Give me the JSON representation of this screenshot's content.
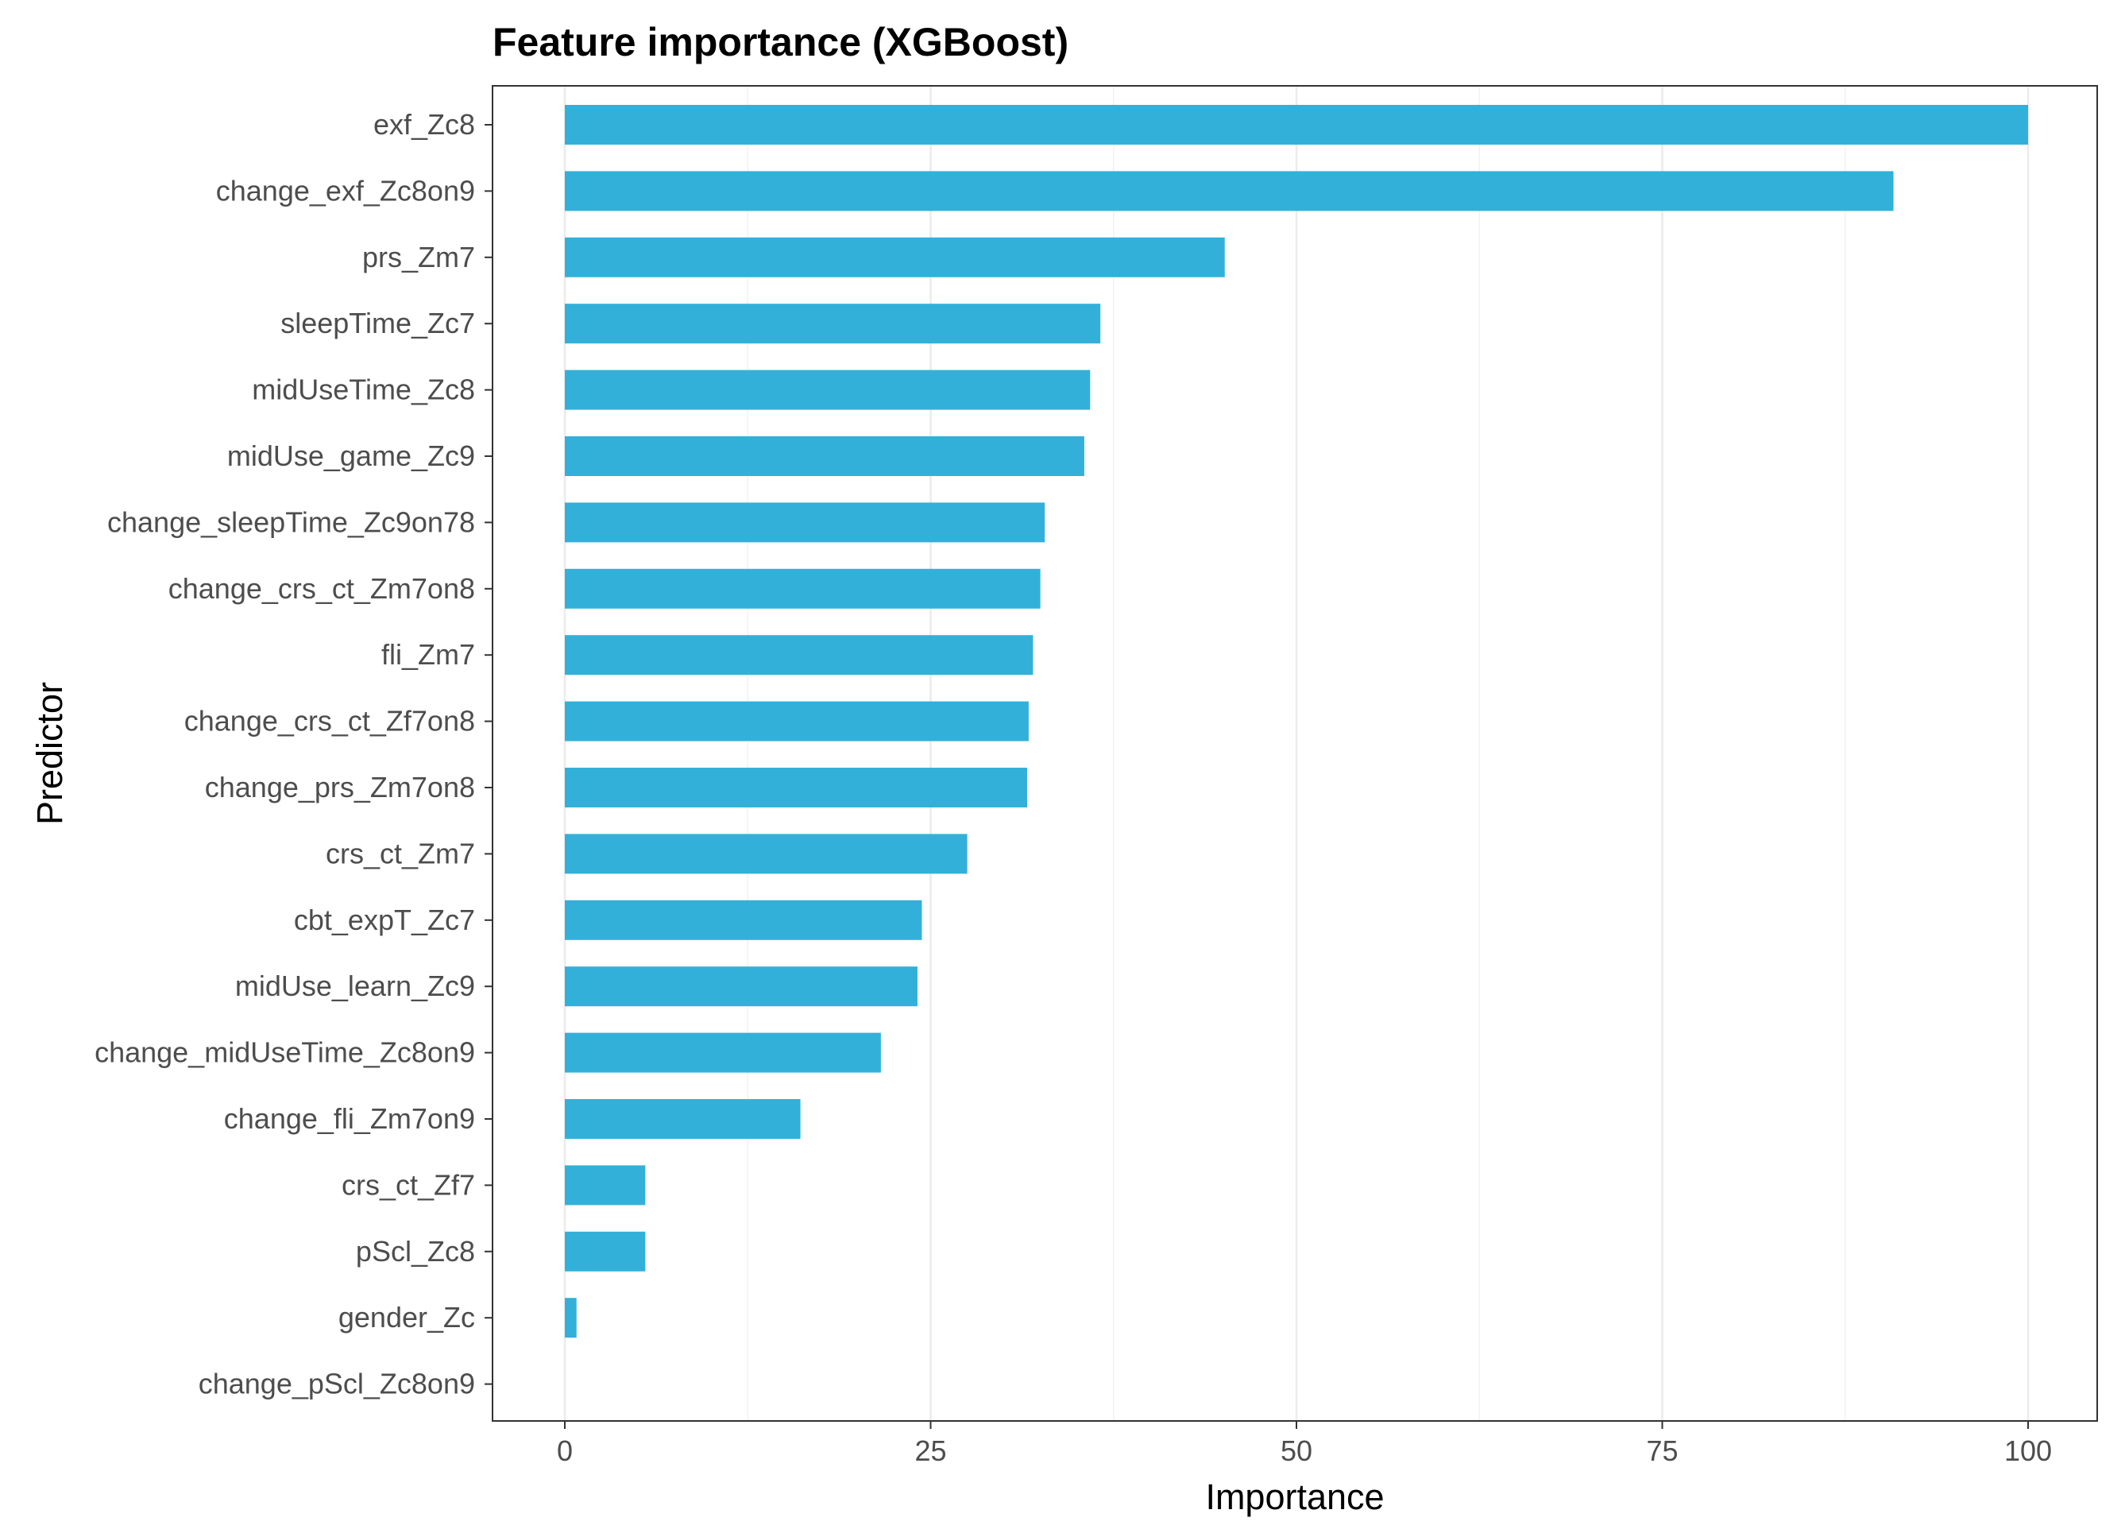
{
  "chart_data": {
    "type": "bar",
    "orientation": "horizontal",
    "title": "Feature importance (XGBoost)",
    "xlabel": "Importance",
    "ylabel": "Predictor",
    "xlim": [
      0,
      100
    ],
    "x_ticks": [
      0,
      25,
      50,
      75,
      100
    ],
    "x_tick_labels": [
      "0",
      "25",
      "50",
      "75",
      "100"
    ],
    "grid": "vertical",
    "bar_color": "#33b0d9",
    "categories": [
      "exf_Zc8",
      "change_exf_Zc8on9",
      "prs_Zm7",
      "sleepTime_Zc7",
      "midUseTime_Zc8",
      "midUse_game_Zc9",
      "change_sleepTime_Zc9on78",
      "change_crs_ct_Zm7on8",
      "fli_Zm7",
      "change_crs_ct_Zf7on8",
      "change_prs_Zm7on8",
      "crs_ct_Zm7",
      "cbt_expT_Zc7",
      "midUse_learn_Zc9",
      "change_midUseTime_Zc8on9",
      "change_fli_Zm7on9",
      "crs_ct_Zf7",
      "pScl_Zc8",
      "gender_Zc",
      "change_pScl_Zc8on9"
    ],
    "values": [
      100,
      90.8,
      45.1,
      36.6,
      35.9,
      35.5,
      32.8,
      32.5,
      32.0,
      31.7,
      31.6,
      27.5,
      24.4,
      24.1,
      21.6,
      16.1,
      5.5,
      5.5,
      0.8,
      0
    ]
  }
}
